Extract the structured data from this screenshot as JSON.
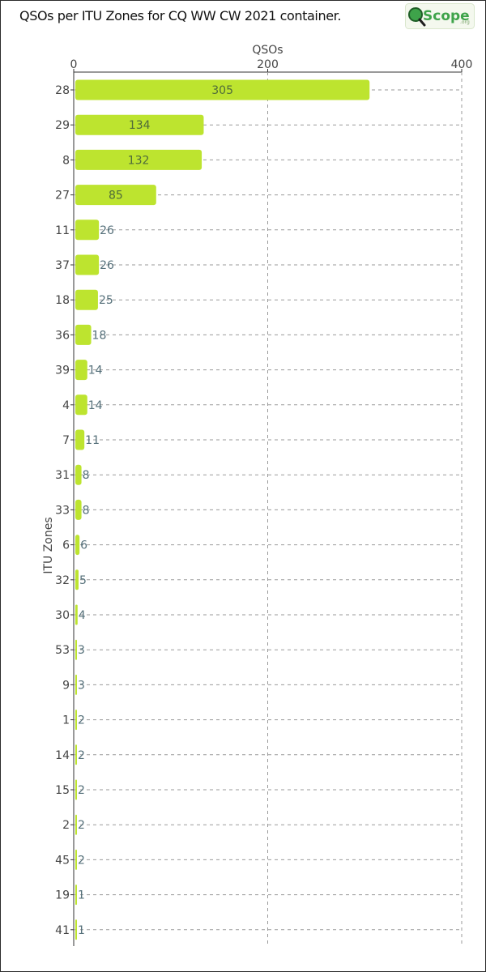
{
  "header": {
    "title": "QSOs per ITU Zones for CQ WW CW 2021 container.",
    "logo_text": "Scope",
    "logo_domain": ".org"
  },
  "colors": {
    "bar": "#bde42f",
    "grid": "#9a9a9a",
    "axis": "#333333",
    "logo_green": "#3ea34a"
  },
  "chart_data": {
    "type": "bar",
    "orientation": "horizontal",
    "title": "QSOs per ITU Zones for CQ WW CW 2021 container.",
    "xlabel": "QSOs",
    "ylabel": "ITU Zones",
    "xlim": [
      0,
      400
    ],
    "xticks": [
      0,
      200,
      400
    ],
    "grid": true,
    "categories": [
      "28",
      "29",
      "8",
      "27",
      "11",
      "37",
      "18",
      "36",
      "39",
      "4",
      "7",
      "31",
      "33",
      "6",
      "32",
      "30",
      "53",
      "9",
      "1",
      "14",
      "15",
      "2",
      "45",
      "19",
      "41"
    ],
    "values": [
      305,
      134,
      132,
      85,
      26,
      26,
      25,
      18,
      14,
      14,
      11,
      8,
      8,
      6,
      5,
      4,
      3,
      3,
      2,
      2,
      2,
      2,
      2,
      1,
      1
    ]
  }
}
